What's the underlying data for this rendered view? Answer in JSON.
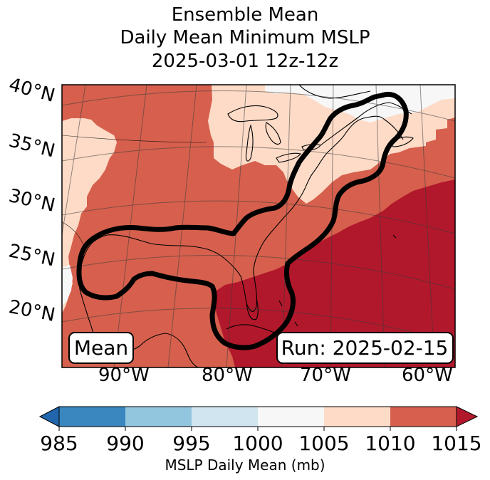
{
  "title": {
    "line1": "Ensemble Mean",
    "line2": "Daily Mean Minimum MSLP",
    "line3": "2025-03-01 12z-12z"
  },
  "map": {
    "lat_labels": [
      "40°N",
      "35°N",
      "30°N",
      "25°N",
      "20°N"
    ],
    "lon_labels": [
      "90°W",
      "80°W",
      "70°W",
      "60°W"
    ],
    "mean_box": "Mean",
    "run_box": "Run: 2025-02-15",
    "palette": {
      "c985": "#3a86bf",
      "c990": "#92c5de",
      "c995": "#d1e5f0",
      "c1000": "#f7f7f7",
      "c1005": "#fddbc7",
      "c1010": "#d6604d",
      "c1015": "#b2182b"
    }
  },
  "colorbar": {
    "ticks": [
      "985",
      "990",
      "995",
      "1000",
      "1005",
      "1010",
      "1015"
    ],
    "label": "MSLP Daily Mean (mb)",
    "colors": [
      "#3a86bf",
      "#92c5de",
      "#d1e5f0",
      "#f7f7f7",
      "#fddbc7",
      "#d6604d"
    ],
    "under_color": "#2166ac",
    "over_color": "#b2182b"
  }
}
